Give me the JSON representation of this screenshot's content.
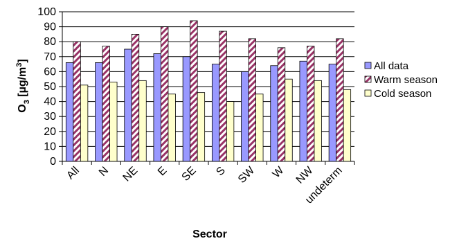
{
  "chart_data": {
    "type": "bar",
    "categories": [
      "All",
      "N",
      "NE",
      "E",
      "SE",
      "S",
      "SW",
      "W",
      "NW",
      "undeterm"
    ],
    "series": [
      {
        "name": "All data",
        "values": [
          66,
          66,
          75,
          72,
          70,
          65,
          60,
          64,
          67,
          65
        ]
      },
      {
        "name": "Warm season",
        "values": [
          80,
          77,
          85,
          90,
          94,
          87,
          82,
          76,
          77,
          82
        ]
      },
      {
        "name": "Cold season",
        "values": [
          51,
          53,
          54,
          45,
          46,
          40,
          45,
          55,
          54,
          48
        ]
      }
    ],
    "xlabel": "Sector",
    "ylabel_main": "O",
    "ylabel_sub": "3",
    "ylabel_unit": " [µg/m",
    "ylabel_sup": "3",
    "ylabel_close": "]",
    "ylim": [
      0,
      100
    ],
    "yticks": [
      0,
      10,
      20,
      30,
      40,
      50,
      60,
      70,
      80,
      90,
      100
    ],
    "grid": true,
    "legend_position": "right",
    "colors": {
      "all_data_fill": "#9999ff",
      "warm_pattern_fill": "#993366",
      "warm_pattern_bg": "#ffffff",
      "cold_fill": "#ffffcc",
      "outline": "#000000"
    }
  }
}
